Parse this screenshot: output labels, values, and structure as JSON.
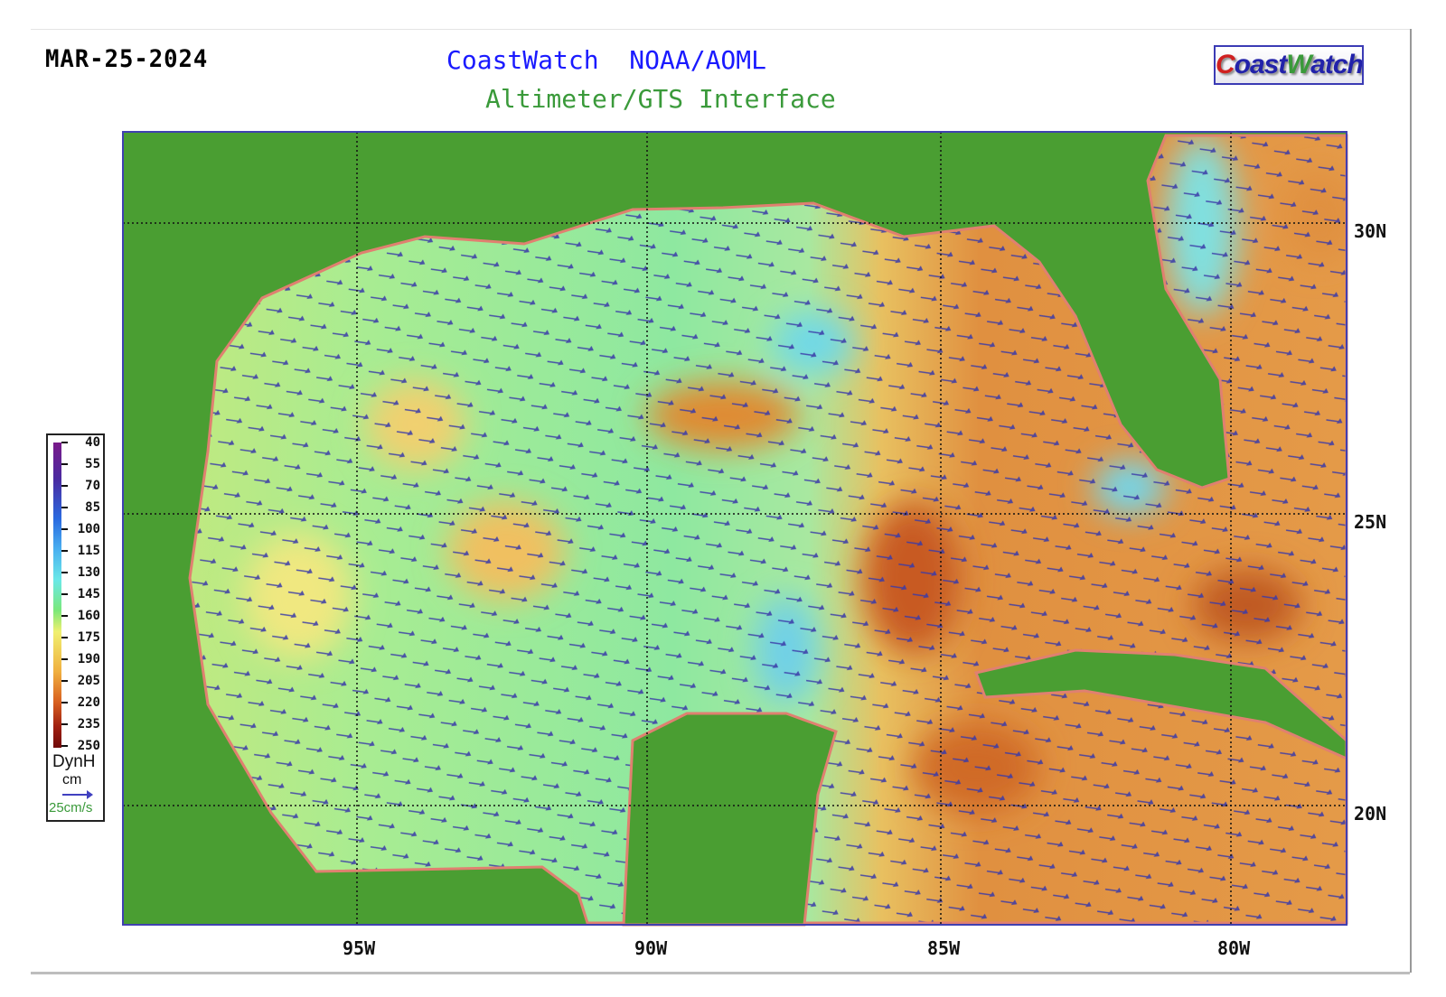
{
  "header": {
    "date": "MAR-25-2024",
    "title": "CoastWatch  NOAA/AOML",
    "subtitle": "Altimeter/GTS Interface",
    "logo_text": "CoastWatch"
  },
  "map": {
    "region": "Gulf of Mexico",
    "land_color": "#4a9e32",
    "current_vector_color": "#3a3aa8",
    "latitude_labels": [
      "30N",
      "25N",
      "20N"
    ],
    "longitude_labels": [
      "95W",
      "90W",
      "85W",
      "80W"
    ]
  },
  "legend": {
    "ticks": [
      "40",
      "55",
      "70",
      "85",
      "100",
      "115",
      "130",
      "145",
      "160",
      "175",
      "190",
      "205",
      "220",
      "235",
      "250"
    ],
    "variable": "DynH",
    "unit": "cm",
    "vector_scale": "25cm/s"
  }
}
